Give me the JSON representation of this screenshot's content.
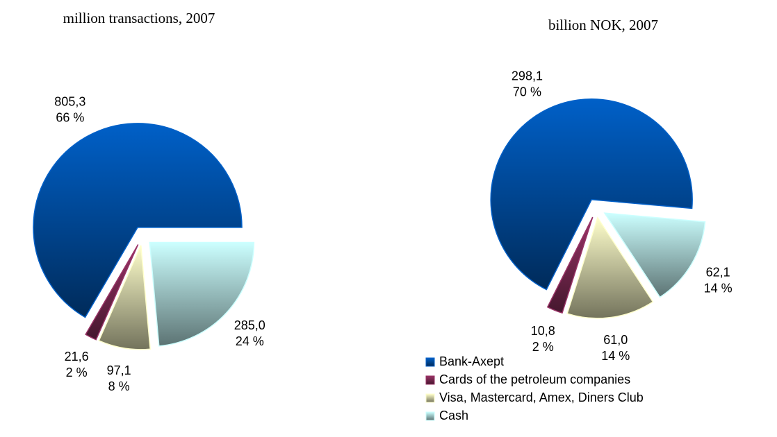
{
  "chart_data": [
    {
      "type": "pie",
      "title": "million transactions, 2007",
      "values": [
        805.3,
        21.6,
        97.1,
        285.0
      ],
      "value_labels": [
        "805,3",
        "21,6",
        "97,1",
        "285,0"
      ],
      "percents": [
        66,
        2,
        8,
        24
      ],
      "percent_labels": [
        "66 %",
        "2 %",
        "8 %",
        "24 %"
      ]
    },
    {
      "type": "pie",
      "title": "billion NOK, 2007",
      "values": [
        298.1,
        10.8,
        61.0,
        62.1
      ],
      "value_labels": [
        "298,1",
        "10,8",
        "61,0",
        "62,1"
      ],
      "percents": [
        70,
        2,
        14,
        14
      ],
      "percent_labels": [
        "70 %",
        "2 %",
        "14 %",
        "14 %"
      ]
    }
  ],
  "legend": {
    "items": [
      {
        "name": "Bank-Axept",
        "color": "#0060c8"
      },
      {
        "name": "Cards of the petroleum companies",
        "color": "#993366"
      },
      {
        "name": "Visa, Mastercard, Amex, Diners Club",
        "color": "#ffffcc"
      },
      {
        "name": "Cash",
        "color": "#ccffff"
      }
    ]
  }
}
